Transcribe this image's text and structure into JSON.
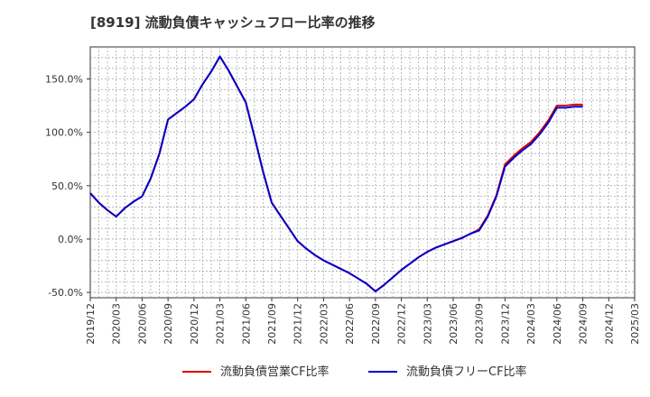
{
  "chart_data": {
    "type": "line",
    "title": "[8919]  流動負債キャッシュフロー比率の推移",
    "xlabel": "",
    "ylabel": "",
    "ylim": [
      -55,
      180
    ],
    "yticks": [
      -50,
      0,
      50,
      100,
      150
    ],
    "ytick_labels": [
      "-50.0%",
      "0.0%",
      "50.0%",
      "100.0%",
      "150.0%"
    ],
    "x_start": "2019/12",
    "x_end": "2025/03",
    "xtick_labels": [
      "2019/12",
      "2020/03",
      "2020/06",
      "2020/09",
      "2020/12",
      "2021/03",
      "2021/06",
      "2021/09",
      "2021/12",
      "2022/03",
      "2022/06",
      "2022/09",
      "2022/12",
      "2023/03",
      "2023/06",
      "2023/09",
      "2023/12",
      "2024/03",
      "2024/06",
      "2024/09",
      "2024/12",
      "2025/03"
    ],
    "grid": true,
    "legend_position": "bottom",
    "x": [
      "2019/12",
      "2020/01",
      "2020/02",
      "2020/03",
      "2020/04",
      "2020/05",
      "2020/06",
      "2020/07",
      "2020/08",
      "2020/09",
      "2020/10",
      "2020/11",
      "2020/12",
      "2021/01",
      "2021/02",
      "2021/03",
      "2021/04",
      "2021/05",
      "2021/06",
      "2021/07",
      "2021/08",
      "2021/09",
      "2021/10",
      "2021/11",
      "2021/12",
      "2022/01",
      "2022/02",
      "2022/03",
      "2022/04",
      "2022/05",
      "2022/06",
      "2022/07",
      "2022/08",
      "2022/09",
      "2022/10",
      "2022/11",
      "2022/12",
      "2023/01",
      "2023/02",
      "2023/03",
      "2023/04",
      "2023/05",
      "2023/06",
      "2023/07",
      "2023/08",
      "2023/09",
      "2023/10",
      "2023/11",
      "2023/12",
      "2024/01",
      "2024/02",
      "2024/03",
      "2024/04",
      "2024/05",
      "2024/06",
      "2024/07",
      "2024/08",
      "2024/09"
    ],
    "series": [
      {
        "name": "流動負債営業CF比率",
        "color": "#dd0000",
        "values": [
          43,
          34,
          27,
          21,
          29,
          35,
          40,
          57,
          80,
          112,
          118,
          124,
          131,
          145,
          157,
          171,
          158,
          143,
          128,
          96,
          63,
          34,
          22,
          10,
          -2,
          -9,
          -15,
          -20,
          -24,
          -28,
          -32,
          -37,
          -42,
          -49,
          -43,
          -36,
          -29,
          -23,
          -17,
          -12,
          -8,
          -5,
          -2,
          1,
          5,
          9,
          22,
          41,
          70,
          78,
          85,
          91,
          100,
          111,
          125,
          125,
          126,
          126
        ]
      },
      {
        "name": "流動負債フリーCF比率",
        "color": "#0000cc",
        "values": [
          43,
          34,
          27,
          21,
          29,
          35,
          40,
          57,
          80,
          112,
          118,
          124,
          131,
          145,
          157,
          171,
          158,
          143,
          128,
          96,
          63,
          34,
          22,
          10,
          -2,
          -9,
          -15,
          -20,
          -24,
          -28,
          -32,
          -37,
          -42,
          -49,
          -43,
          -36,
          -29,
          -23,
          -17,
          -12,
          -8,
          -5,
          -2,
          1,
          5,
          8,
          21,
          40,
          68,
          76,
          83,
          89,
          98,
          109,
          123,
          123,
          124,
          124
        ]
      }
    ]
  }
}
